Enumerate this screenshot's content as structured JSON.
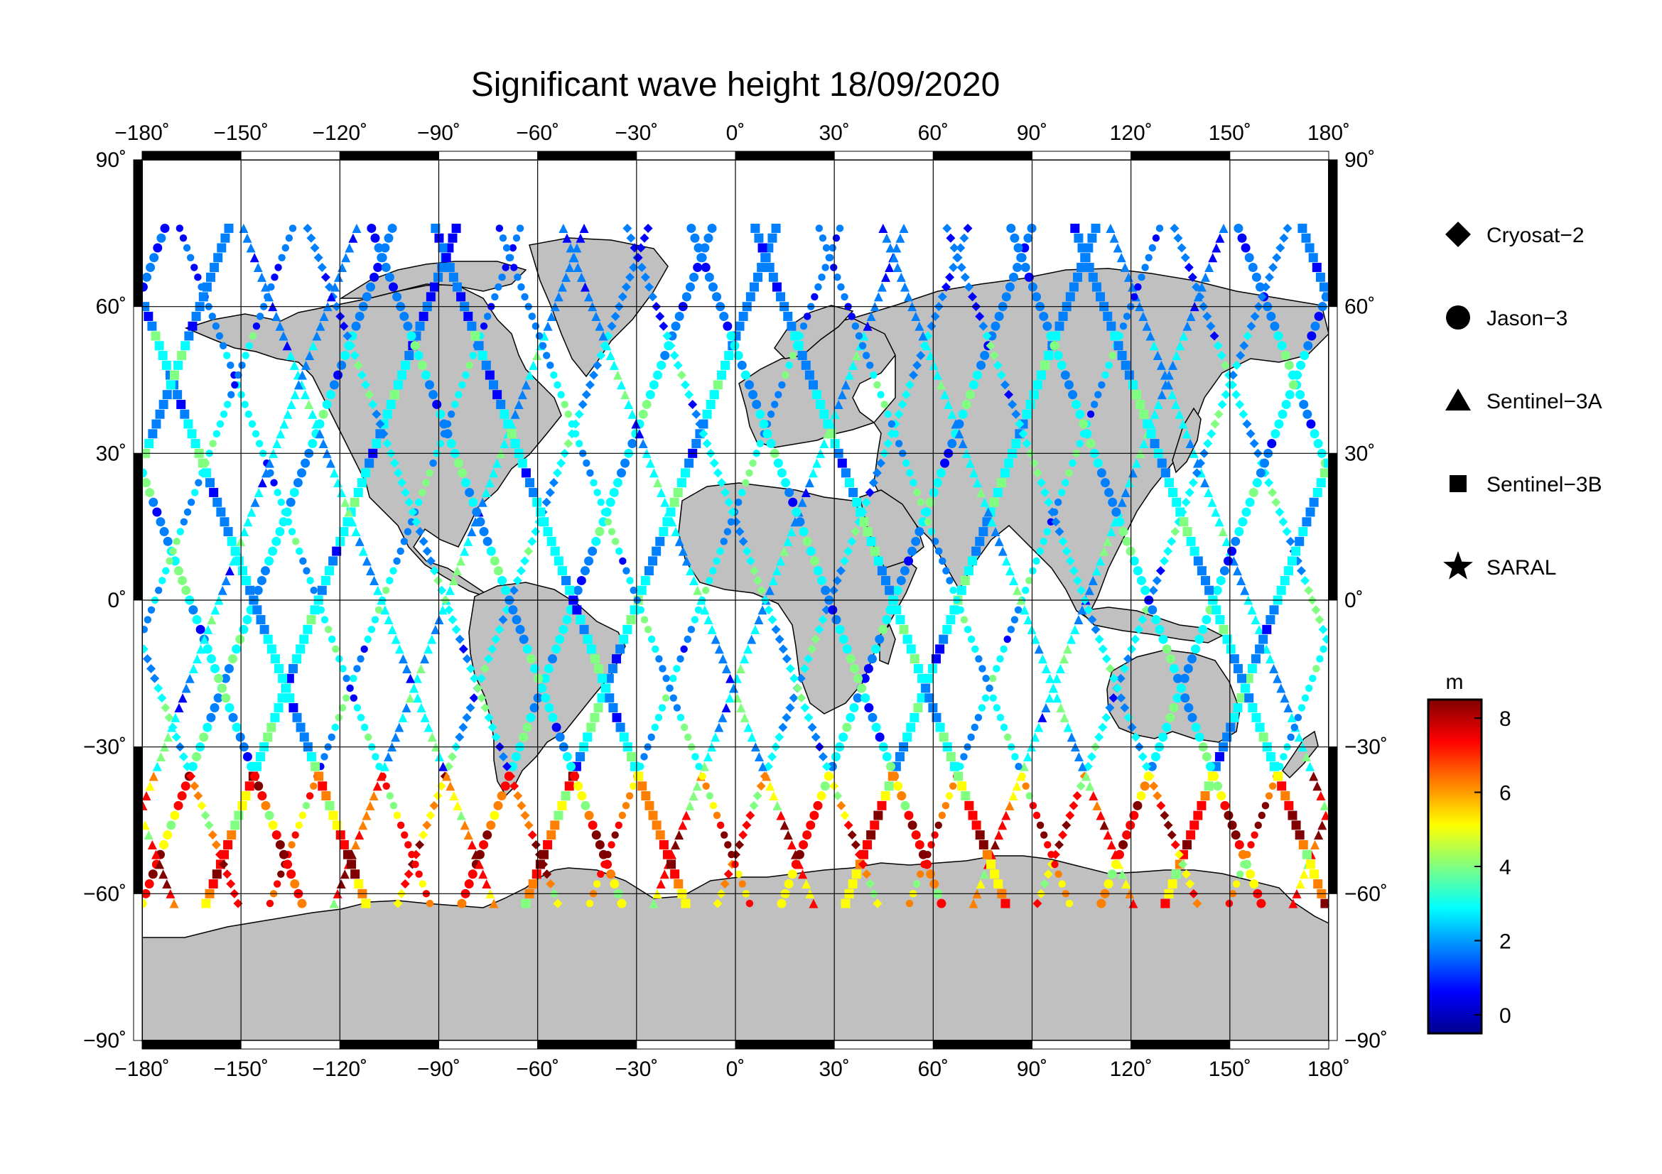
{
  "title": "Significant wave height 18/09/2020",
  "axes": {
    "lon_ticks": [
      "−180˚",
      "−150˚",
      "−120˚",
      "−90˚",
      "−60˚",
      "−30˚",
      "0˚",
      "30˚",
      "60˚",
      "90˚",
      "120˚",
      "150˚",
      "180˚"
    ],
    "lat_ticks": [
      "90˚",
      "60˚",
      "30˚",
      "0˚",
      "−30˚",
      "−60˚",
      "−90˚"
    ],
    "lon_range": [
      -180,
      180
    ],
    "lat_range": [
      -90,
      90
    ],
    "grid": true
  },
  "legend": {
    "position": "right",
    "items": [
      {
        "label": "Cryosat−2",
        "symbol": "diamond"
      },
      {
        "label": "Jason−3",
        "symbol": "circle"
      },
      {
        "label": "Sentinel−3A",
        "symbol": "triangle"
      },
      {
        "label": "Sentinel−3B",
        "symbol": "square"
      },
      {
        "label": "SARAL",
        "symbol": "star"
      }
    ]
  },
  "colorbar": {
    "unit": "m",
    "ticks": [
      "8",
      "6",
      "4",
      "2",
      "0"
    ],
    "range": [
      -0.5,
      8.5
    ],
    "stops": [
      "#00008f",
      "#0000ff",
      "#0080ff",
      "#00ffff",
      "#80ff80",
      "#ffff00",
      "#ff8000",
      "#ff0000",
      "#800000"
    ]
  },
  "colors": {
    "land": "#c0c0c0",
    "ocean": "#ffffff",
    "grid": "#000000"
  }
}
